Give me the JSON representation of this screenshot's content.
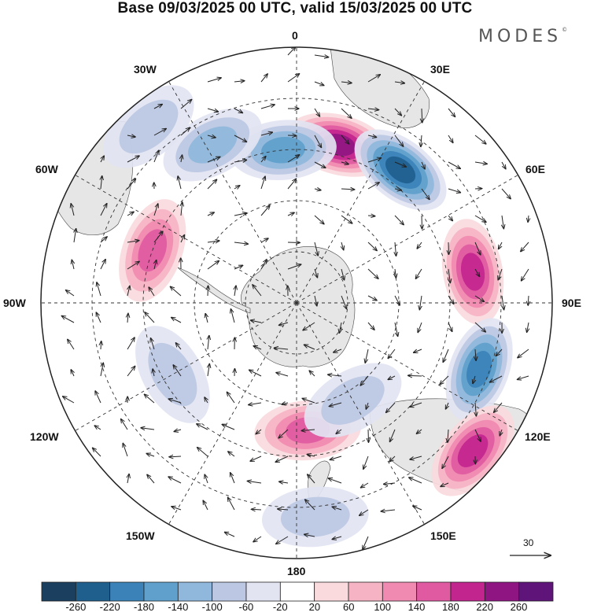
{
  "title": "Base 09/03/2025 00 UTC, valid 15/03/2025 00 UTC",
  "brand": "MODES",
  "brand_mark": "©",
  "longitude_labels": {
    "n0": "0",
    "n30e": "30E",
    "n60e": "60E",
    "n90e": "90E",
    "n120e": "120E",
    "n150e": "150E",
    "n180": "180",
    "n150w": "150W",
    "n120w": "120W",
    "n90w": "90W",
    "n60w": "60W",
    "n30w": "30W"
  },
  "reference_vector": {
    "label": "30"
  },
  "colorbar": {
    "labels": [
      "-260",
      "-220",
      "-180",
      "-140",
      "-100",
      "-60",
      "-20",
      "20",
      "60",
      "100",
      "140",
      "180",
      "220",
      "260"
    ],
    "colors": [
      "#1b3f5e",
      "#1f5f8e",
      "#3a82b8",
      "#5fa0cc",
      "#8fb8dc",
      "#bcc8e3",
      "#e2e4f2",
      "#ffffff",
      "#fadadd",
      "#f6b3c4",
      "#f08ab0",
      "#e05aa1",
      "#c3258e",
      "#8f1682",
      "#5e1479"
    ]
  },
  "map": {
    "projection": "south-polar-stereographic",
    "land_color": "#e8e8e8",
    "anomalies": [
      {
        "id": "positive-center-north",
        "lon": 15,
        "lat": -58,
        "value": 240
      },
      {
        "id": "negative-center-northeast",
        "lon": 38,
        "lat": -57,
        "value": -240
      },
      {
        "id": "positive-east",
        "lon": 80,
        "lat": -55,
        "value": 190
      },
      {
        "id": "negative-east",
        "lon": 110,
        "lat": -52,
        "value": -210
      },
      {
        "id": "positive-southeast",
        "lon": 130,
        "lat": -45,
        "value": 190
      },
      {
        "id": "negative-northwest",
        "lon": -5,
        "lat": -60,
        "value": -150
      },
      {
        "id": "negative-west-small",
        "lon": -28,
        "lat": -55,
        "value": -110
      },
      {
        "id": "negative-far-west",
        "lon": -40,
        "lat": -45,
        "value": -90
      },
      {
        "id": "positive-west",
        "lon": -70,
        "lat": -60,
        "value": 150
      },
      {
        "id": "positive-south",
        "lon": 175,
        "lat": -65,
        "value": 140
      },
      {
        "id": "negative-south",
        "lon": 150,
        "lat": -68,
        "value": -90
      },
      {
        "id": "negative-southwest",
        "lon": -120,
        "lat": -62,
        "value": -70
      },
      {
        "id": "negative-south-lower",
        "lon": 175,
        "lat": -48,
        "value": -60
      }
    ]
  }
}
